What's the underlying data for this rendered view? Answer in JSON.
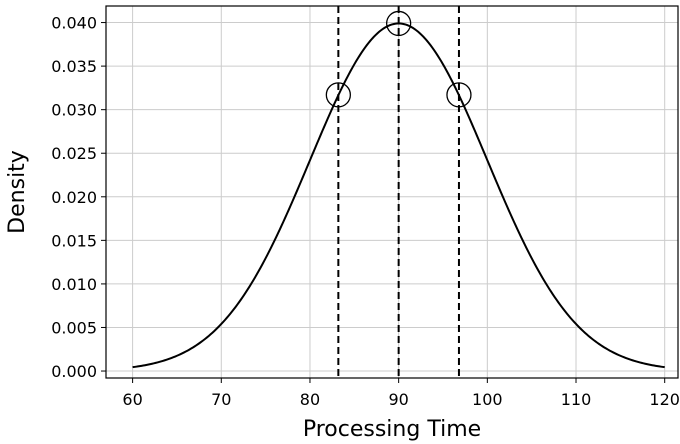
{
  "chart_data": {
    "type": "line",
    "title": "",
    "xlabel": "Processing Time",
    "ylabel": "Density",
    "xlim": [
      57,
      121.5
    ],
    "ylim": [
      -0.0008,
      0.0419
    ],
    "grid": true,
    "legend": "none",
    "x_ticks": [
      60,
      70,
      80,
      90,
      100,
      110,
      120
    ],
    "x_tick_labels": [
      "60",
      "70",
      "80",
      "90",
      "100",
      "110",
      "120"
    ],
    "y_ticks": [
      0.0,
      0.005,
      0.01,
      0.015,
      0.02,
      0.025,
      0.03,
      0.035,
      0.04
    ],
    "y_tick_labels": [
      "0.000",
      "0.005",
      "0.010",
      "0.015",
      "0.020",
      "0.025",
      "0.030",
      "0.035",
      "0.040"
    ],
    "series": [
      {
        "distribution": "normal",
        "mean": 90,
        "std": 10,
        "x_range": [
          60,
          120
        ],
        "color": "#000000"
      }
    ],
    "vertical_lines": [
      {
        "x": 83.2,
        "style": "dashed",
        "color": "#000000"
      },
      {
        "x": 90,
        "style": "dashed",
        "color": "#000000"
      },
      {
        "x": 96.8,
        "style": "dashed",
        "color": "#000000"
      }
    ],
    "markers": [
      {
        "x": 83.2,
        "y": 0.0317,
        "shape": "open-circle"
      },
      {
        "x": 90,
        "y": 0.0399,
        "shape": "open-circle"
      },
      {
        "x": 96.8,
        "y": 0.0317,
        "shape": "open-circle"
      }
    ]
  }
}
